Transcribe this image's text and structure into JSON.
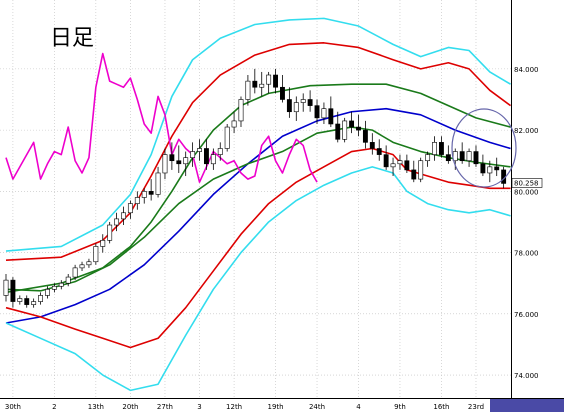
{
  "chart_data": {
    "type": "candlestick",
    "title": "日足",
    "y_ticks": [
      "84.000",
      "82.000",
      "80.000",
      "78.000",
      "76.000",
      "74.000"
    ],
    "y_values": [
      84.0,
      82.0,
      80.0,
      78.0,
      76.0,
      74.0
    ],
    "ylim": [
      73.25,
      86.25
    ],
    "x_tick_labels": [
      "30th",
      "2",
      "13th",
      "20th",
      "27th",
      "3",
      "12th",
      "19th",
      "24th",
      "4",
      "9th",
      "16th",
      "23rd"
    ],
    "x_tick_index": [
      1,
      7,
      13,
      18,
      23,
      28,
      33,
      39,
      45,
      51,
      57,
      63,
      68
    ],
    "n_bars": 73,
    "price_label": "80.258",
    "price_value": 80.258,
    "grid": true,
    "colors": {
      "background": "#ffffff",
      "grid": "#bfbfbf",
      "up_body": "#ffffff",
      "down_body": "#000000",
      "candle_line": "#000000",
      "bb_outer": "#33ddee",
      "bb_inner": "#dd0000",
      "bb_mid": "#1a7a1a",
      "ma": "#0000cc",
      "chikou": "#ee00cc",
      "circle": "#6666aa"
    },
    "candles_ohlc": [
      [
        76.6,
        77.3,
        76.4,
        77.1
      ],
      [
        77.1,
        77.2,
        76.2,
        76.4
      ],
      [
        76.4,
        76.6,
        76.3,
        76.5
      ],
      [
        76.5,
        76.6,
        76.2,
        76.3
      ],
      [
        76.3,
        76.5,
        76.2,
        76.4
      ],
      [
        76.4,
        76.7,
        76.3,
        76.6
      ],
      [
        76.6,
        76.9,
        76.5,
        76.8
      ],
      [
        76.8,
        77.0,
        76.7,
        76.9
      ],
      [
        76.9,
        77.1,
        76.8,
        77.0
      ],
      [
        77.0,
        77.3,
        76.9,
        77.2
      ],
      [
        77.2,
        77.6,
        77.1,
        77.5
      ],
      [
        77.5,
        77.7,
        77.4,
        77.6
      ],
      [
        77.6,
        77.8,
        77.5,
        77.7
      ],
      [
        77.7,
        78.3,
        77.6,
        78.2
      ],
      [
        78.2,
        78.6,
        78.0,
        78.4
      ],
      [
        78.4,
        79.0,
        78.3,
        78.9
      ],
      [
        78.9,
        79.3,
        78.7,
        79.1
      ],
      [
        79.1,
        79.5,
        78.9,
        79.3
      ],
      [
        79.3,
        79.7,
        79.1,
        79.6
      ],
      [
        79.6,
        80.0,
        79.4,
        79.8
      ],
      [
        79.8,
        80.1,
        79.6,
        80.0
      ],
      [
        80.0,
        80.4,
        79.7,
        79.9
      ],
      [
        79.9,
        80.8,
        79.8,
        80.6
      ],
      [
        80.6,
        81.4,
        80.4,
        81.2
      ],
      [
        81.2,
        81.6,
        80.7,
        81.0
      ],
      [
        81.0,
        81.5,
        80.6,
        80.9
      ],
      [
        80.9,
        81.3,
        80.5,
        81.1
      ],
      [
        81.1,
        81.6,
        80.8,
        81.3
      ],
      [
        81.3,
        81.7,
        81.0,
        81.4
      ],
      [
        81.4,
        81.7,
        80.7,
        80.9
      ],
      [
        80.9,
        81.4,
        80.7,
        81.2
      ],
      [
        81.2,
        81.6,
        81.0,
        81.4
      ],
      [
        81.4,
        82.2,
        81.3,
        82.1
      ],
      [
        82.1,
        82.6,
        81.9,
        82.3
      ],
      [
        82.3,
        83.1,
        82.1,
        83.0
      ],
      [
        83.0,
        83.8,
        82.8,
        83.6
      ],
      [
        83.6,
        84.0,
        83.2,
        83.4
      ],
      [
        83.4,
        83.9,
        83.1,
        83.5
      ],
      [
        83.5,
        83.9,
        83.2,
        83.8
      ],
      [
        83.8,
        84.0,
        83.2,
        83.4
      ],
      [
        83.4,
        83.8,
        82.9,
        83.0
      ],
      [
        83.0,
        83.4,
        82.4,
        82.6
      ],
      [
        82.6,
        83.1,
        82.3,
        82.9
      ],
      [
        82.9,
        83.2,
        82.6,
        83.0
      ],
      [
        83.0,
        83.3,
        82.6,
        82.8
      ],
      [
        82.8,
        83.0,
        82.2,
        82.4
      ],
      [
        82.4,
        82.9,
        82.2,
        82.7
      ],
      [
        82.7,
        83.1,
        82.1,
        82.2
      ],
      [
        82.2,
        82.6,
        81.6,
        81.7
      ],
      [
        81.7,
        82.4,
        81.6,
        82.3
      ],
      [
        82.3,
        82.6,
        81.9,
        82.1
      ],
      [
        82.1,
        82.5,
        81.8,
        82.0
      ],
      [
        82.0,
        82.3,
        81.4,
        81.6
      ],
      [
        81.6,
        81.9,
        81.2,
        81.4
      ],
      [
        81.4,
        81.7,
        81.0,
        81.2
      ],
      [
        81.2,
        81.5,
        80.7,
        80.8
      ],
      [
        80.8,
        81.1,
        80.5,
        80.9
      ],
      [
        80.9,
        81.2,
        80.7,
        81.0
      ],
      [
        81.0,
        81.2,
        80.6,
        80.7
      ],
      [
        80.7,
        81.0,
        80.3,
        80.4
      ],
      [
        80.4,
        81.1,
        80.3,
        81.0
      ],
      [
        81.0,
        81.3,
        80.8,
        81.2
      ],
      [
        81.2,
        81.8,
        81.0,
        81.6
      ],
      [
        81.6,
        81.8,
        81.1,
        81.2
      ],
      [
        81.2,
        81.5,
        80.9,
        81.0
      ],
      [
        81.0,
        81.4,
        80.7,
        81.3
      ],
      [
        81.3,
        81.6,
        80.9,
        81.0
      ],
      [
        81.0,
        81.4,
        80.8,
        81.3
      ],
      [
        81.3,
        81.5,
        80.8,
        80.9
      ],
      [
        80.9,
        81.2,
        80.5,
        80.6
      ],
      [
        80.6,
        81.0,
        80.3,
        80.8
      ],
      [
        80.8,
        81.1,
        80.5,
        80.7
      ],
      [
        80.7,
        80.8,
        80.1,
        80.258
      ]
    ],
    "series": [
      {
        "name": "",
        "color": "#33ddee",
        "points": [
          [
            0,
            78.05
          ],
          [
            8,
            78.2
          ],
          [
            14,
            78.9
          ],
          [
            18,
            79.9
          ],
          [
            21,
            81.2
          ],
          [
            24,
            83.1
          ],
          [
            27,
            84.3
          ],
          [
            31,
            85.0
          ],
          [
            36,
            85.45
          ],
          [
            41,
            85.6
          ],
          [
            46,
            85.65
          ],
          [
            51,
            85.4
          ],
          [
            56,
            84.8
          ],
          [
            60,
            84.4
          ],
          [
            64,
            84.7
          ],
          [
            67,
            84.6
          ],
          [
            70,
            83.9
          ],
          [
            73,
            83.5
          ]
        ]
      },
      {
        "name": "",
        "color": "#dd0000",
        "points": [
          [
            0,
            77.75
          ],
          [
            8,
            77.85
          ],
          [
            14,
            78.4
          ],
          [
            18,
            79.3
          ],
          [
            21,
            80.5
          ],
          [
            24,
            81.8
          ],
          [
            27,
            82.9
          ],
          [
            31,
            83.8
          ],
          [
            36,
            84.45
          ],
          [
            41,
            84.8
          ],
          [
            46,
            84.85
          ],
          [
            51,
            84.7
          ],
          [
            56,
            84.3
          ],
          [
            60,
            84.0
          ],
          [
            64,
            84.2
          ],
          [
            67,
            84.0
          ],
          [
            70,
            83.3
          ],
          [
            73,
            82.8
          ]
        ]
      },
      {
        "name": "",
        "color": "#1a7a1a",
        "points": [
          [
            0,
            76.7
          ],
          [
            8,
            77.0
          ],
          [
            14,
            77.5
          ],
          [
            18,
            78.2
          ],
          [
            21,
            79.0
          ],
          [
            24,
            80.0
          ],
          [
            27,
            81.1
          ],
          [
            30,
            82.0
          ],
          [
            34,
            82.8
          ],
          [
            38,
            83.2
          ],
          [
            44,
            83.45
          ],
          [
            50,
            83.5
          ],
          [
            55,
            83.5
          ],
          [
            60,
            83.2
          ],
          [
            64,
            82.8
          ],
          [
            68,
            82.4
          ],
          [
            73,
            82.1
          ]
        ]
      },
      {
        "name": "",
        "color": "#0000cc",
        "points": [
          [
            0,
            75.7
          ],
          [
            5,
            75.9
          ],
          [
            10,
            76.3
          ],
          [
            15,
            76.8
          ],
          [
            20,
            77.6
          ],
          [
            25,
            78.7
          ],
          [
            30,
            79.9
          ],
          [
            35,
            80.9
          ],
          [
            40,
            81.8
          ],
          [
            45,
            82.3
          ],
          [
            50,
            82.6
          ],
          [
            55,
            82.7
          ],
          [
            60,
            82.5
          ],
          [
            65,
            82.0
          ],
          [
            70,
            81.6
          ],
          [
            73,
            81.4
          ]
        ]
      },
      {
        "name": "",
        "color": "#1a7a1a",
        "points": [
          [
            0,
            76.8
          ],
          [
            5,
            76.75
          ],
          [
            10,
            77.05
          ],
          [
            15,
            77.6
          ],
          [
            20,
            78.5
          ],
          [
            25,
            79.6
          ],
          [
            30,
            80.4
          ],
          [
            35,
            80.9
          ],
          [
            40,
            81.3
          ],
          [
            45,
            81.9
          ],
          [
            50,
            82.1
          ],
          [
            53,
            82.0
          ],
          [
            56,
            81.6
          ],
          [
            60,
            81.3
          ],
          [
            64,
            81.1
          ],
          [
            68,
            80.95
          ],
          [
            73,
            80.8
          ]
        ]
      },
      {
        "name": "",
        "color": "#dd0000",
        "points": [
          [
            0,
            76.2
          ],
          [
            5,
            75.9
          ],
          [
            10,
            75.5
          ],
          [
            14,
            75.2
          ],
          [
            18,
            74.9
          ],
          [
            22,
            75.2
          ],
          [
            26,
            76.2
          ],
          [
            30,
            77.4
          ],
          [
            34,
            78.6
          ],
          [
            38,
            79.6
          ],
          [
            42,
            80.3
          ],
          [
            46,
            80.8
          ],
          [
            50,
            81.3
          ],
          [
            53,
            81.4
          ],
          [
            56,
            81.2
          ],
          [
            58,
            80.7
          ],
          [
            61,
            80.5
          ],
          [
            64,
            80.3
          ],
          [
            67,
            80.2
          ],
          [
            70,
            80.1
          ],
          [
            73,
            80.1
          ]
        ]
      },
      {
        "name": "",
        "color": "#33ddee",
        "points": [
          [
            0,
            75.7
          ],
          [
            5,
            75.2
          ],
          [
            10,
            74.7
          ],
          [
            14,
            74.0
          ],
          [
            18,
            73.5
          ],
          [
            22,
            73.7
          ],
          [
            26,
            75.3
          ],
          [
            30,
            76.8
          ],
          [
            34,
            78.0
          ],
          [
            38,
            79.0
          ],
          [
            42,
            79.7
          ],
          [
            46,
            80.2
          ],
          [
            50,
            80.6
          ],
          [
            53,
            80.8
          ],
          [
            56,
            80.6
          ],
          [
            58,
            80.0
          ],
          [
            61,
            79.6
          ],
          [
            64,
            79.4
          ],
          [
            67,
            79.3
          ],
          [
            70,
            79.4
          ],
          [
            73,
            79.2
          ]
        ]
      },
      {
        "name": "",
        "color": "#ee00cc",
        "points": [
          [
            0,
            81.1
          ],
          [
            1,
            80.4
          ],
          [
            2,
            80.8
          ],
          [
            3,
            81.2
          ],
          [
            4,
            81.6
          ],
          [
            5,
            80.4
          ],
          [
            6,
            80.9
          ],
          [
            7,
            81.3
          ],
          [
            8,
            81.2
          ],
          [
            9,
            82.1
          ],
          [
            10,
            81.0
          ],
          [
            11,
            80.6
          ],
          [
            12,
            81.1
          ],
          [
            13,
            83.4
          ],
          [
            14,
            84.5
          ],
          [
            15,
            83.6
          ],
          [
            16,
            83.5
          ],
          [
            17,
            83.4
          ],
          [
            18,
            83.7
          ],
          [
            19,
            83.0
          ],
          [
            20,
            82.2
          ],
          [
            21,
            81.9
          ],
          [
            22,
            83.1
          ],
          [
            23,
            82.5
          ],
          [
            24,
            81.2
          ],
          [
            25,
            81.7
          ],
          [
            26,
            81.4
          ],
          [
            27,
            81.2
          ],
          [
            28,
            80.3
          ],
          [
            29,
            80.8
          ],
          [
            30,
            81.3
          ],
          [
            31,
            81.1
          ],
          [
            32,
            80.9
          ],
          [
            33,
            81.0
          ],
          [
            34,
            80.6
          ],
          [
            35,
            80.4
          ],
          [
            36,
            80.5
          ],
          [
            37,
            81.5
          ],
          [
            38,
            81.8
          ],
          [
            39,
            81.0
          ],
          [
            40,
            80.6
          ],
          [
            41,
            81.2
          ],
          [
            42,
            81.7
          ],
          [
            43,
            81.5
          ],
          [
            44,
            80.7
          ],
          [
            45,
            80.3
          ]
        ]
      }
    ]
  }
}
